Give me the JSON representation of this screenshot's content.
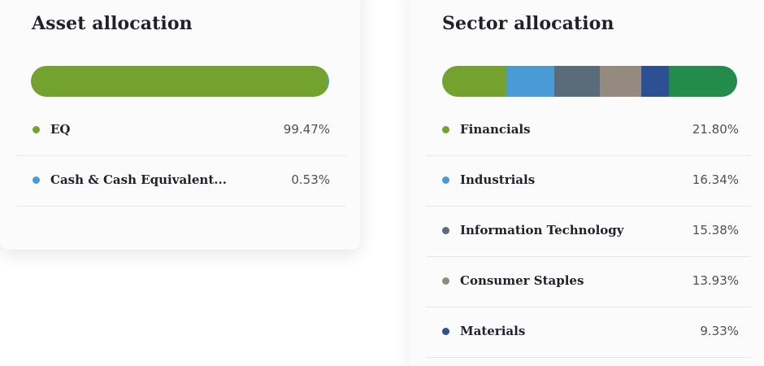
{
  "asset_allocation": {
    "title": "Asset allocation",
    "items": [
      {
        "label": "EQ",
        "value": "99.47%",
        "percent": 99.47,
        "color": "#73a22e"
      },
      {
        "label": "Cash & Cash Equivalent...",
        "value": "0.53%",
        "percent": 0.53,
        "color": "#4a9ad6"
      }
    ]
  },
  "sector_allocation": {
    "title": "Sector allocation",
    "bar_segments": [
      {
        "name": "Financials",
        "percent": 21.8,
        "color": "#73a22e"
      },
      {
        "name": "Industrials",
        "percent": 16.34,
        "color": "#4a9ad6"
      },
      {
        "name": "Information Technology",
        "percent": 15.38,
        "color": "#5a6b79"
      },
      {
        "name": "Consumer Staples",
        "percent": 13.93,
        "color": "#958a80"
      },
      {
        "name": "Materials",
        "percent": 9.33,
        "color": "#2d4f93"
      },
      {
        "name": "",
        "percent": 23.22,
        "color": "#238c4b"
      }
    ],
    "items": [
      {
        "label": "Financials",
        "value": "21.80%",
        "color": "#73a22e"
      },
      {
        "label": "Industrials",
        "value": "16.34%",
        "color": "#4a9ad6"
      },
      {
        "label": "Information Technology",
        "value": "15.38%",
        "color": "#5a6b79"
      },
      {
        "label": "Consumer Staples",
        "value": "13.93%",
        "color": "#958a80"
      },
      {
        "label": "Materials",
        "value": "9.33%",
        "color": "#2d4f93"
      }
    ]
  }
}
